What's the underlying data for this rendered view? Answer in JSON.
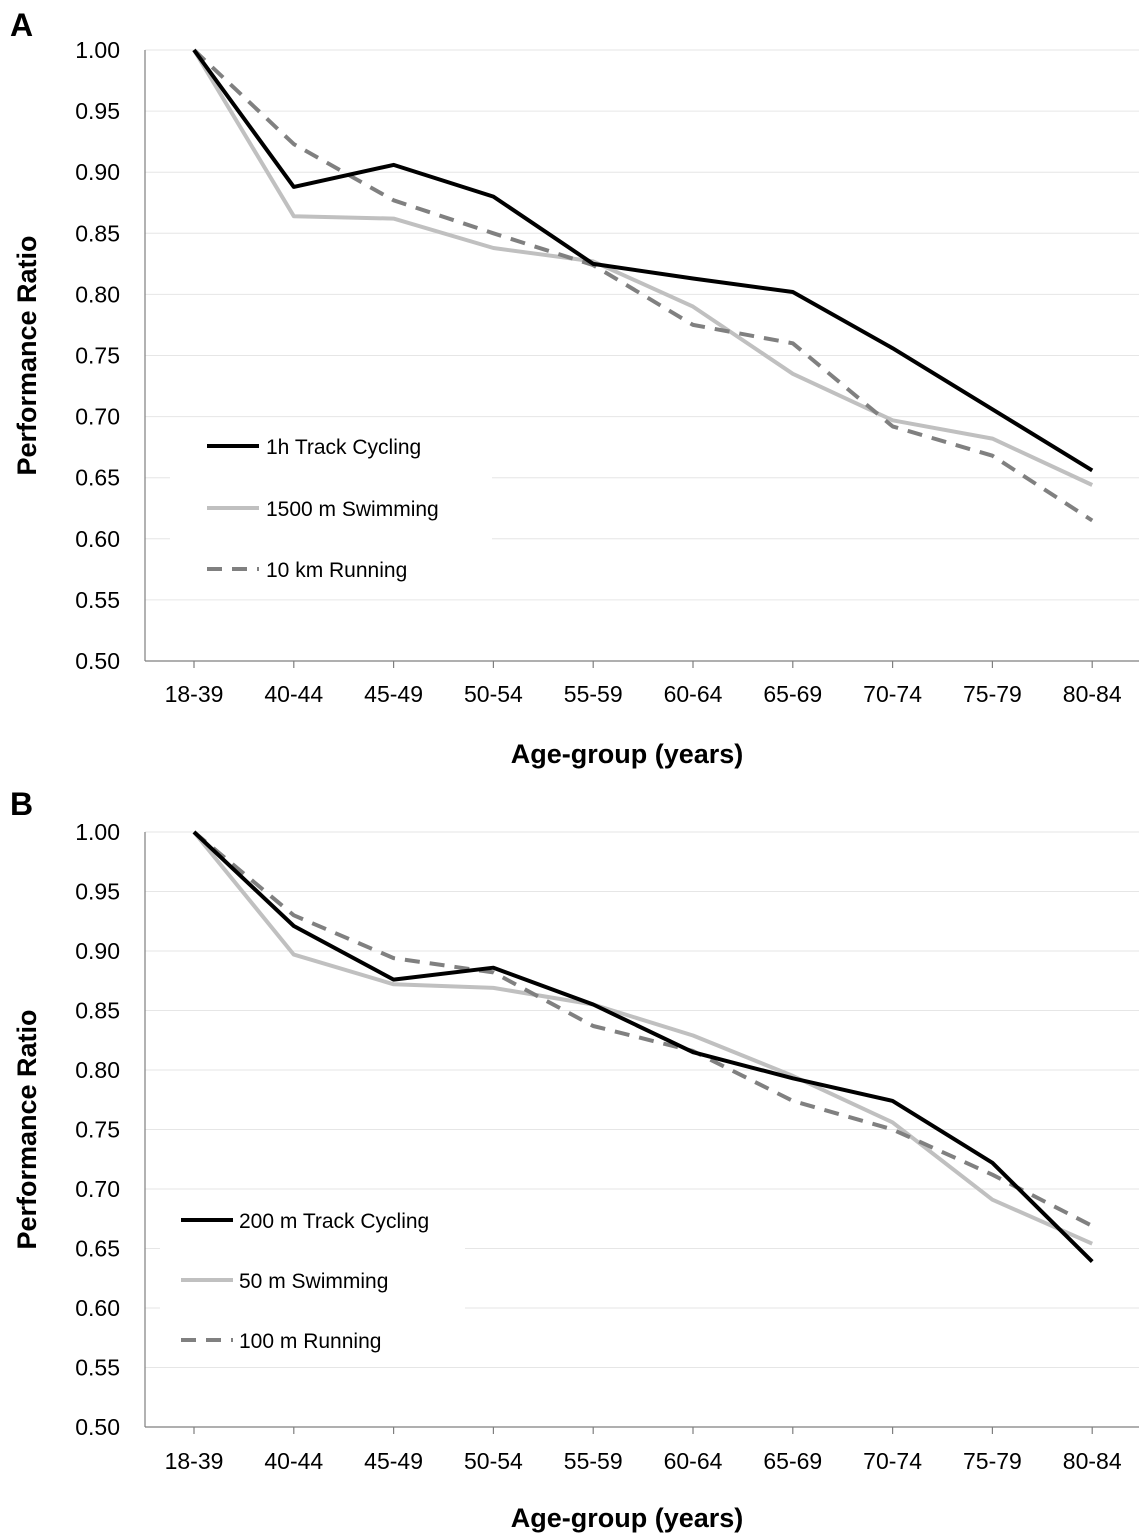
{
  "chart_data": [
    {
      "type": "line",
      "panel": "A",
      "xlabel": "Age-group (years)",
      "ylabel": "Performance Ratio",
      "ylim": [
        0.5,
        1.0
      ],
      "yticks": [
        "0.50",
        "0.55",
        "0.60",
        "0.65",
        "0.70",
        "0.75",
        "0.80",
        "0.85",
        "0.90",
        "0.95",
        "1.00"
      ],
      "categories": [
        "18-39",
        "40-44",
        "45-49",
        "50-54",
        "55-59",
        "60-64",
        "65-69",
        "70-74",
        "75-79",
        "80-84"
      ],
      "grid": "horizontal",
      "legend": "bottom-left",
      "series": [
        {
          "name": "1h Track Cycling",
          "color": "#000000",
          "dash": "solid",
          "values": [
            1.0,
            0.888,
            0.906,
            0.88,
            0.825,
            0.813,
            0.802,
            0.756,
            0.706,
            0.656
          ]
        },
        {
          "name": "1500 m Swimming",
          "color": "#c0c0c0",
          "dash": "solid",
          "values": [
            1.0,
            0.864,
            0.862,
            0.838,
            0.827,
            0.79,
            0.735,
            0.697,
            0.682,
            0.644
          ]
        },
        {
          "name": "10 km Running",
          "color": "#808080",
          "dash": "dashed",
          "values": [
            1.0,
            0.923,
            0.877,
            0.85,
            0.824,
            0.775,
            0.76,
            0.692,
            0.668,
            0.615
          ]
        }
      ]
    },
    {
      "type": "line",
      "panel": "B",
      "xlabel": "Age-group (years)",
      "ylabel": "Performance Ratio",
      "ylim": [
        0.5,
        1.0
      ],
      "yticks": [
        "0.50",
        "0.55",
        "0.60",
        "0.65",
        "0.70",
        "0.75",
        "0.80",
        "0.85",
        "0.90",
        "0.95",
        "1.00"
      ],
      "categories": [
        "18-39",
        "40-44",
        "45-49",
        "50-54",
        "55-59",
        "60-64",
        "65-69",
        "70-74",
        "75-79",
        "80-84"
      ],
      "grid": "horizontal",
      "legend": "bottom-left",
      "series": [
        {
          "name": "200 m Track Cycling",
          "color": "#000000",
          "dash": "solid",
          "values": [
            1.0,
            0.921,
            0.876,
            0.886,
            0.855,
            0.815,
            0.793,
            0.774,
            0.722,
            0.639
          ]
        },
        {
          "name": "50 m Swimming",
          "color": "#c0c0c0",
          "dash": "solid",
          "values": [
            1.0,
            0.897,
            0.872,
            0.869,
            0.855,
            0.829,
            0.795,
            0.756,
            0.691,
            0.654
          ]
        },
        {
          "name": "100 m Running",
          "color": "#808080",
          "dash": "dashed",
          "values": [
            1.0,
            0.93,
            0.894,
            0.882,
            0.837,
            0.816,
            0.774,
            0.75,
            0.712,
            0.669
          ]
        }
      ]
    }
  ]
}
